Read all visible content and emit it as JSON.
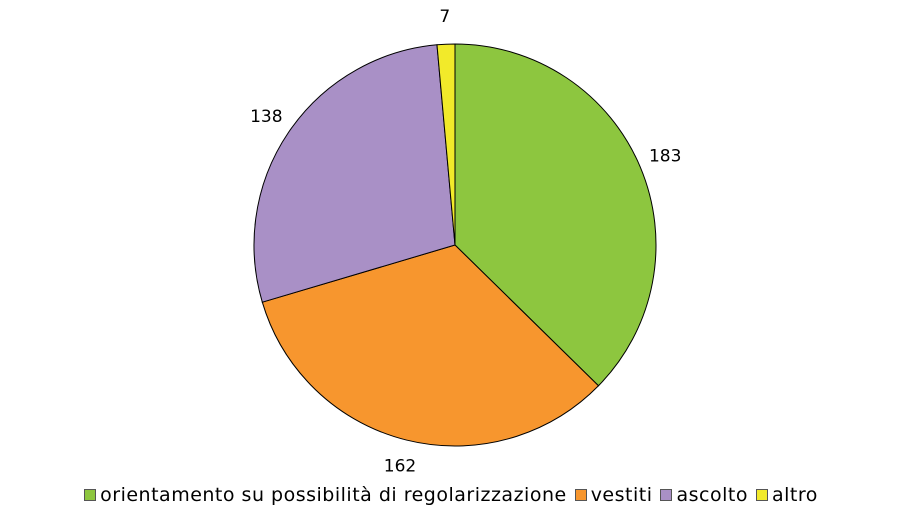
{
  "chart_data": {
    "type": "pie",
    "categories": [
      "orientamento su possibilità di regolarizzazione",
      "vestiti",
      "ascolto",
      "altro"
    ],
    "values": [
      183,
      162,
      138,
      7
    ],
    "colors": [
      "#8dc63f",
      "#f7962e",
      "#a990c6",
      "#f2ea2a"
    ],
    "legend": "bottom"
  }
}
